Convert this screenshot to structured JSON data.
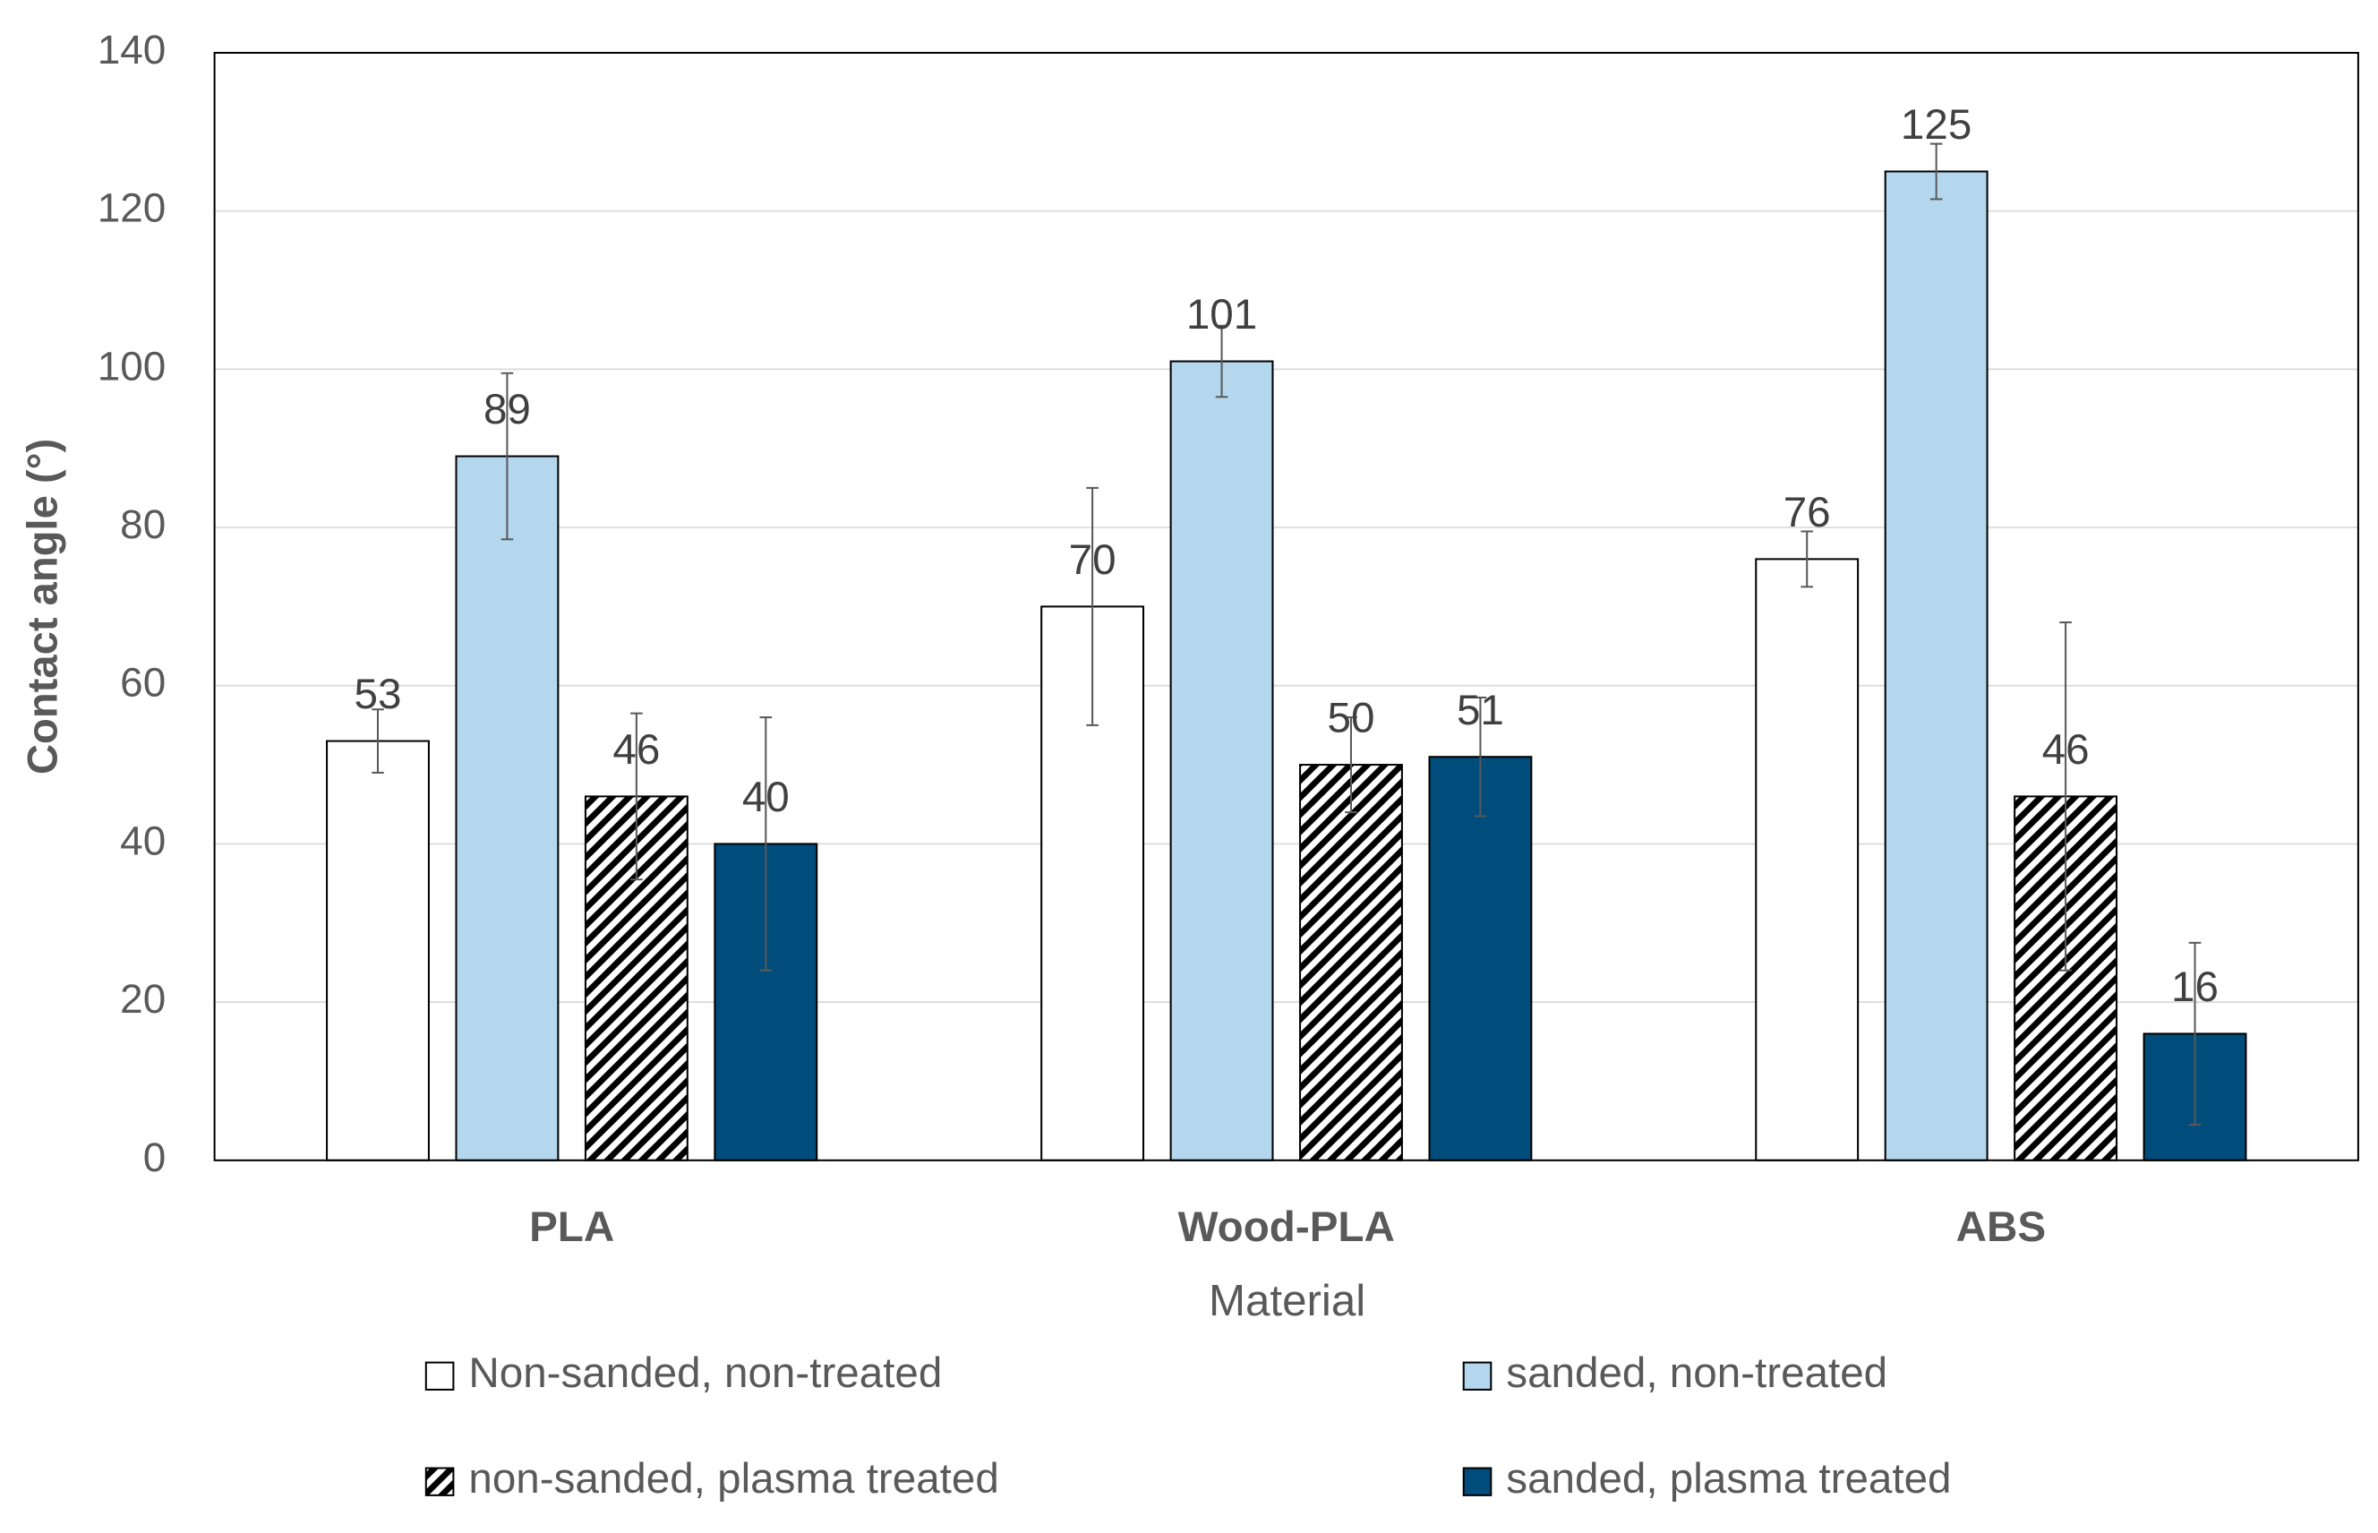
{
  "chart_data": {
    "type": "bar",
    "x_label": "Material",
    "y_label": "Contact angle (°)",
    "categories": [
      "PLA",
      "Wood-PLA",
      "ABS"
    ],
    "series": [
      {
        "name": "Non-sanded, non-treated",
        "color": "#ffffff",
        "values": [
          53,
          70,
          76
        ],
        "errors": [
          4,
          15,
          3.5
        ]
      },
      {
        "name": "sanded, non-treated",
        "color": "#b4d7ee",
        "values": [
          89,
          101,
          125
        ],
        "errors": [
          10.5,
          4.5,
          3.5
        ]
      },
      {
        "name": "non-sanded, plasma treated",
        "color": "#2e75b6",
        "pattern": "hatch",
        "values": [
          46,
          50,
          46
        ],
        "errors": [
          10.5,
          6,
          22
        ]
      },
      {
        "name": "sanded, plasma treated",
        "color": "#004c7a",
        "values": [
          40,
          51,
          16
        ],
        "errors": [
          16,
          7.5,
          11.5
        ]
      }
    ],
    "ylim": [
      0,
      140
    ],
    "yticks": [
      0,
      20,
      40,
      60,
      80,
      100,
      120,
      140
    ],
    "grid": true,
    "legend": "bottom"
  }
}
